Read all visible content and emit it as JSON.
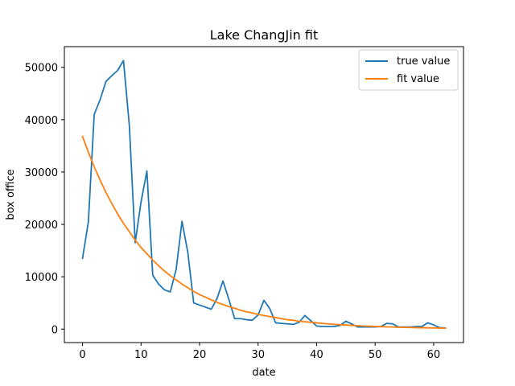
{
  "chart_data": {
    "type": "line",
    "title": "Lake ChangJin fit",
    "xlabel": "date",
    "ylabel": "box office",
    "xlim": [
      -3.1,
      65.1
    ],
    "ylim": [
      -2570,
      53950
    ],
    "xticks": [
      0,
      10,
      20,
      30,
      40,
      50,
      60
    ],
    "yticks": [
      0,
      10000,
      20000,
      30000,
      40000,
      50000
    ],
    "grid": false,
    "legend": "top-right",
    "x": [
      0,
      1,
      2,
      3,
      4,
      5,
      6,
      7,
      8,
      9,
      10,
      11,
      12,
      13,
      14,
      15,
      16,
      17,
      18,
      19,
      20,
      21,
      22,
      23,
      24,
      25,
      26,
      27,
      28,
      29,
      30,
      31,
      32,
      33,
      34,
      35,
      36,
      37,
      38,
      39,
      40,
      41,
      42,
      43,
      44,
      45,
      46,
      47,
      48,
      49,
      50,
      51,
      52,
      53,
      54,
      55,
      56,
      57,
      58,
      59,
      60,
      61,
      62
    ],
    "series": [
      {
        "name": "true value",
        "color": "#1f77b4",
        "values": [
          13500,
          20500,
          41000,
          43800,
          47300,
          48400,
          49400,
          51300,
          38900,
          16500,
          24300,
          30200,
          10300,
          8600,
          7500,
          7100,
          11400,
          20600,
          14600,
          5000,
          4600,
          4200,
          3800,
          5900,
          9200,
          5700,
          2000,
          2000,
          1800,
          1700,
          2700,
          5500,
          3900,
          1200,
          1100,
          1000,
          900,
          1300,
          2600,
          1600,
          600,
          500,
          500,
          500,
          700,
          1500,
          1000,
          400,
          400,
          400,
          400,
          500,
          1100,
          1000,
          400,
          400,
          400,
          500,
          500,
          1200,
          800,
          300,
          200
        ]
      },
      {
        "name": "fit value",
        "color": "#ff7f0e",
        "values": [
          36800,
          33800,
          31000,
          28500,
          26100,
          24000,
          22000,
          20200,
          18600,
          17000,
          15600,
          14400,
          13200,
          12100,
          11100,
          10200,
          9400,
          8600,
          7900,
          7200,
          6600,
          6100,
          5600,
          5100,
          4700,
          4300,
          4000,
          3600,
          3300,
          3100,
          2800,
          2600,
          2400,
          2200,
          2000,
          1800,
          1700,
          1500,
          1400,
          1300,
          1200,
          1100,
          1000,
          900,
          850,
          780,
          720,
          660,
          600,
          550,
          510,
          470,
          430,
          400,
          360,
          330,
          310,
          280,
          260,
          240,
          220,
          200,
          180
        ]
      }
    ]
  }
}
